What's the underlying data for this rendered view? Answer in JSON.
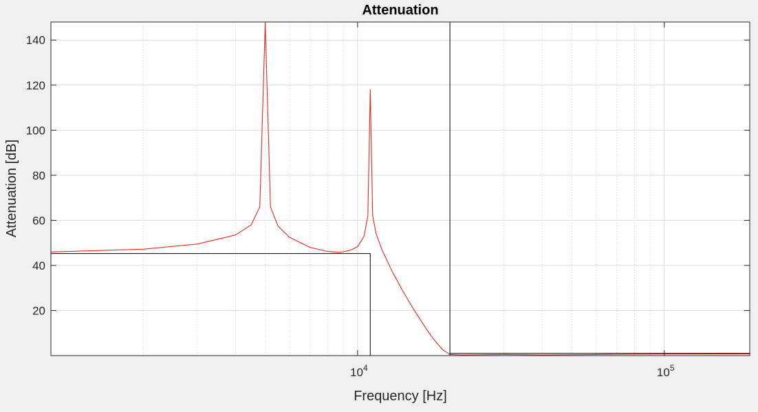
{
  "chart_data": {
    "type": "line",
    "title": "Attenuation",
    "xlabel": "Frequency [Hz]",
    "ylabel": "Attenuation [dB]",
    "xscale": "log",
    "xlim": [
      1000,
      190000
    ],
    "ylim": [
      0,
      148
    ],
    "grid": true,
    "minor_grid_x": true,
    "y_ticks": [
      20,
      40,
      60,
      80,
      100,
      120,
      140
    ],
    "y_tick_labels": [
      "20",
      "40",
      "60",
      "80",
      "100",
      "120",
      "140"
    ],
    "x_ticks": [
      10000,
      100000
    ],
    "x_tick_labels": [
      {
        "base": "10",
        "exp": "4"
      },
      {
        "base": "10",
        "exp": "5"
      }
    ],
    "series": [
      {
        "color": "#e8261e",
        "notches": [
          {
            "frequency": 5000,
            "peak": 148
          },
          {
            "frequency": 11000,
            "peak": 118
          }
        ],
        "points": [
          [
            1000,
            46.0
          ],
          [
            2000,
            47.2
          ],
          [
            3000,
            49.5
          ],
          [
            4000,
            53.5
          ],
          [
            4500,
            58.0
          ],
          [
            4800,
            66.0
          ],
          [
            5000,
            148.0
          ],
          [
            5200,
            66.0
          ],
          [
            5500,
            57.5
          ],
          [
            6000,
            52.5
          ],
          [
            7000,
            48.0
          ],
          [
            8000,
            46.2
          ],
          [
            8800,
            45.8
          ],
          [
            9500,
            46.8
          ],
          [
            10000,
            48.3
          ],
          [
            10500,
            53.0
          ],
          [
            10800,
            62.0
          ],
          [
            11000,
            118.0
          ],
          [
            11200,
            62.0
          ],
          [
            11500,
            54.0
          ],
          [
            12000,
            47.0
          ],
          [
            13000,
            37.0
          ],
          [
            14000,
            29.0
          ],
          [
            15000,
            22.0
          ],
          [
            16000,
            16.0
          ],
          [
            17000,
            10.5
          ],
          [
            18000,
            6.0
          ],
          [
            19000,
            2.5
          ],
          [
            20000,
            0.5
          ],
          [
            22000,
            0.3
          ],
          [
            30000,
            0.5
          ],
          [
            40000,
            0.3
          ],
          [
            60000,
            0.5
          ],
          [
            100000,
            0.7
          ],
          [
            190000,
            0.8
          ]
        ]
      },
      {
        "color": "#000000",
        "points": [
          [
            1000,
            45.3
          ],
          [
            11000,
            45.3
          ],
          [
            11000,
            0
          ],
          [
            20000,
            0
          ],
          [
            20000,
            148
          ],
          [
            20000,
            1
          ],
          [
            190000,
            1
          ]
        ]
      }
    ]
  }
}
